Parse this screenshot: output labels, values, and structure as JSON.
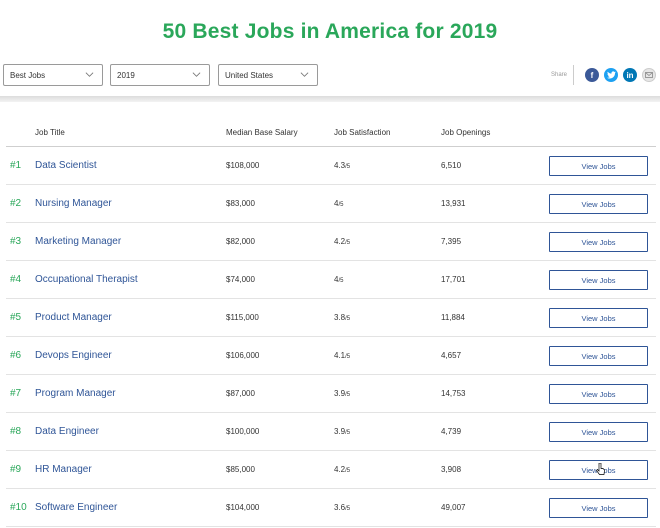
{
  "page": {
    "title": "50 Best Jobs in America for 2019"
  },
  "filters": {
    "list": "Best Jobs",
    "year": "2019",
    "country": "United States"
  },
  "share": {
    "label": "Share",
    "icons": [
      "facebook-icon",
      "twitter-icon",
      "linkedin-icon",
      "email-icon"
    ],
    "facebook_glyph": "f",
    "linkedin_glyph": "in"
  },
  "table": {
    "headers": {
      "job_title": "Job Title",
      "salary": "Median Base Salary",
      "satisfaction": "Job Satisfaction",
      "openings": "Job Openings"
    },
    "rows": [
      {
        "rank": "#1",
        "title": "Data Scientist",
        "salary": "$108,000",
        "sat": "4.3",
        "sat_suffix": "/5",
        "openings": "6,510",
        "button": "View Jobs"
      },
      {
        "rank": "#2",
        "title": "Nursing Manager",
        "salary": "$83,000",
        "sat": "4",
        "sat_suffix": "/5",
        "openings": "13,931",
        "button": "View Jobs"
      },
      {
        "rank": "#3",
        "title": "Marketing Manager",
        "salary": "$82,000",
        "sat": "4.2",
        "sat_suffix": "/5",
        "openings": "7,395",
        "button": "View Jobs"
      },
      {
        "rank": "#4",
        "title": "Occupational Therapist",
        "salary": "$74,000",
        "sat": "4",
        "sat_suffix": "/5",
        "openings": "17,701",
        "button": "View Jobs"
      },
      {
        "rank": "#5",
        "title": "Product Manager",
        "salary": "$115,000",
        "sat": "3.8",
        "sat_suffix": "/5",
        "openings": "11,884",
        "button": "View Jobs"
      },
      {
        "rank": "#6",
        "title": "Devops Engineer",
        "salary": "$106,000",
        "sat": "4.1",
        "sat_suffix": "/5",
        "openings": "4,657",
        "button": "View Jobs"
      },
      {
        "rank": "#7",
        "title": "Program Manager",
        "salary": "$87,000",
        "sat": "3.9",
        "sat_suffix": "/5",
        "openings": "14,753",
        "button": "View Jobs"
      },
      {
        "rank": "#8",
        "title": "Data Engineer",
        "salary": "$100,000",
        "sat": "3.9",
        "sat_suffix": "/5",
        "openings": "4,739",
        "button": "View Jobs"
      },
      {
        "rank": "#9",
        "title": "HR Manager",
        "salary": "$85,000",
        "sat": "4.2",
        "sat_suffix": "/5",
        "openings": "3,908",
        "button": "View Jobs"
      },
      {
        "rank": "#10",
        "title": "Software Engineer",
        "salary": "$104,000",
        "sat": "3.6",
        "sat_suffix": "/5",
        "openings": "49,007",
        "button": "View Jobs"
      }
    ]
  },
  "colors": {
    "title_green": "#2aa75a",
    "link_blue": "#2f5597",
    "facebook": "#3b5998",
    "twitter": "#1da1f2",
    "linkedin": "#0077b5"
  }
}
